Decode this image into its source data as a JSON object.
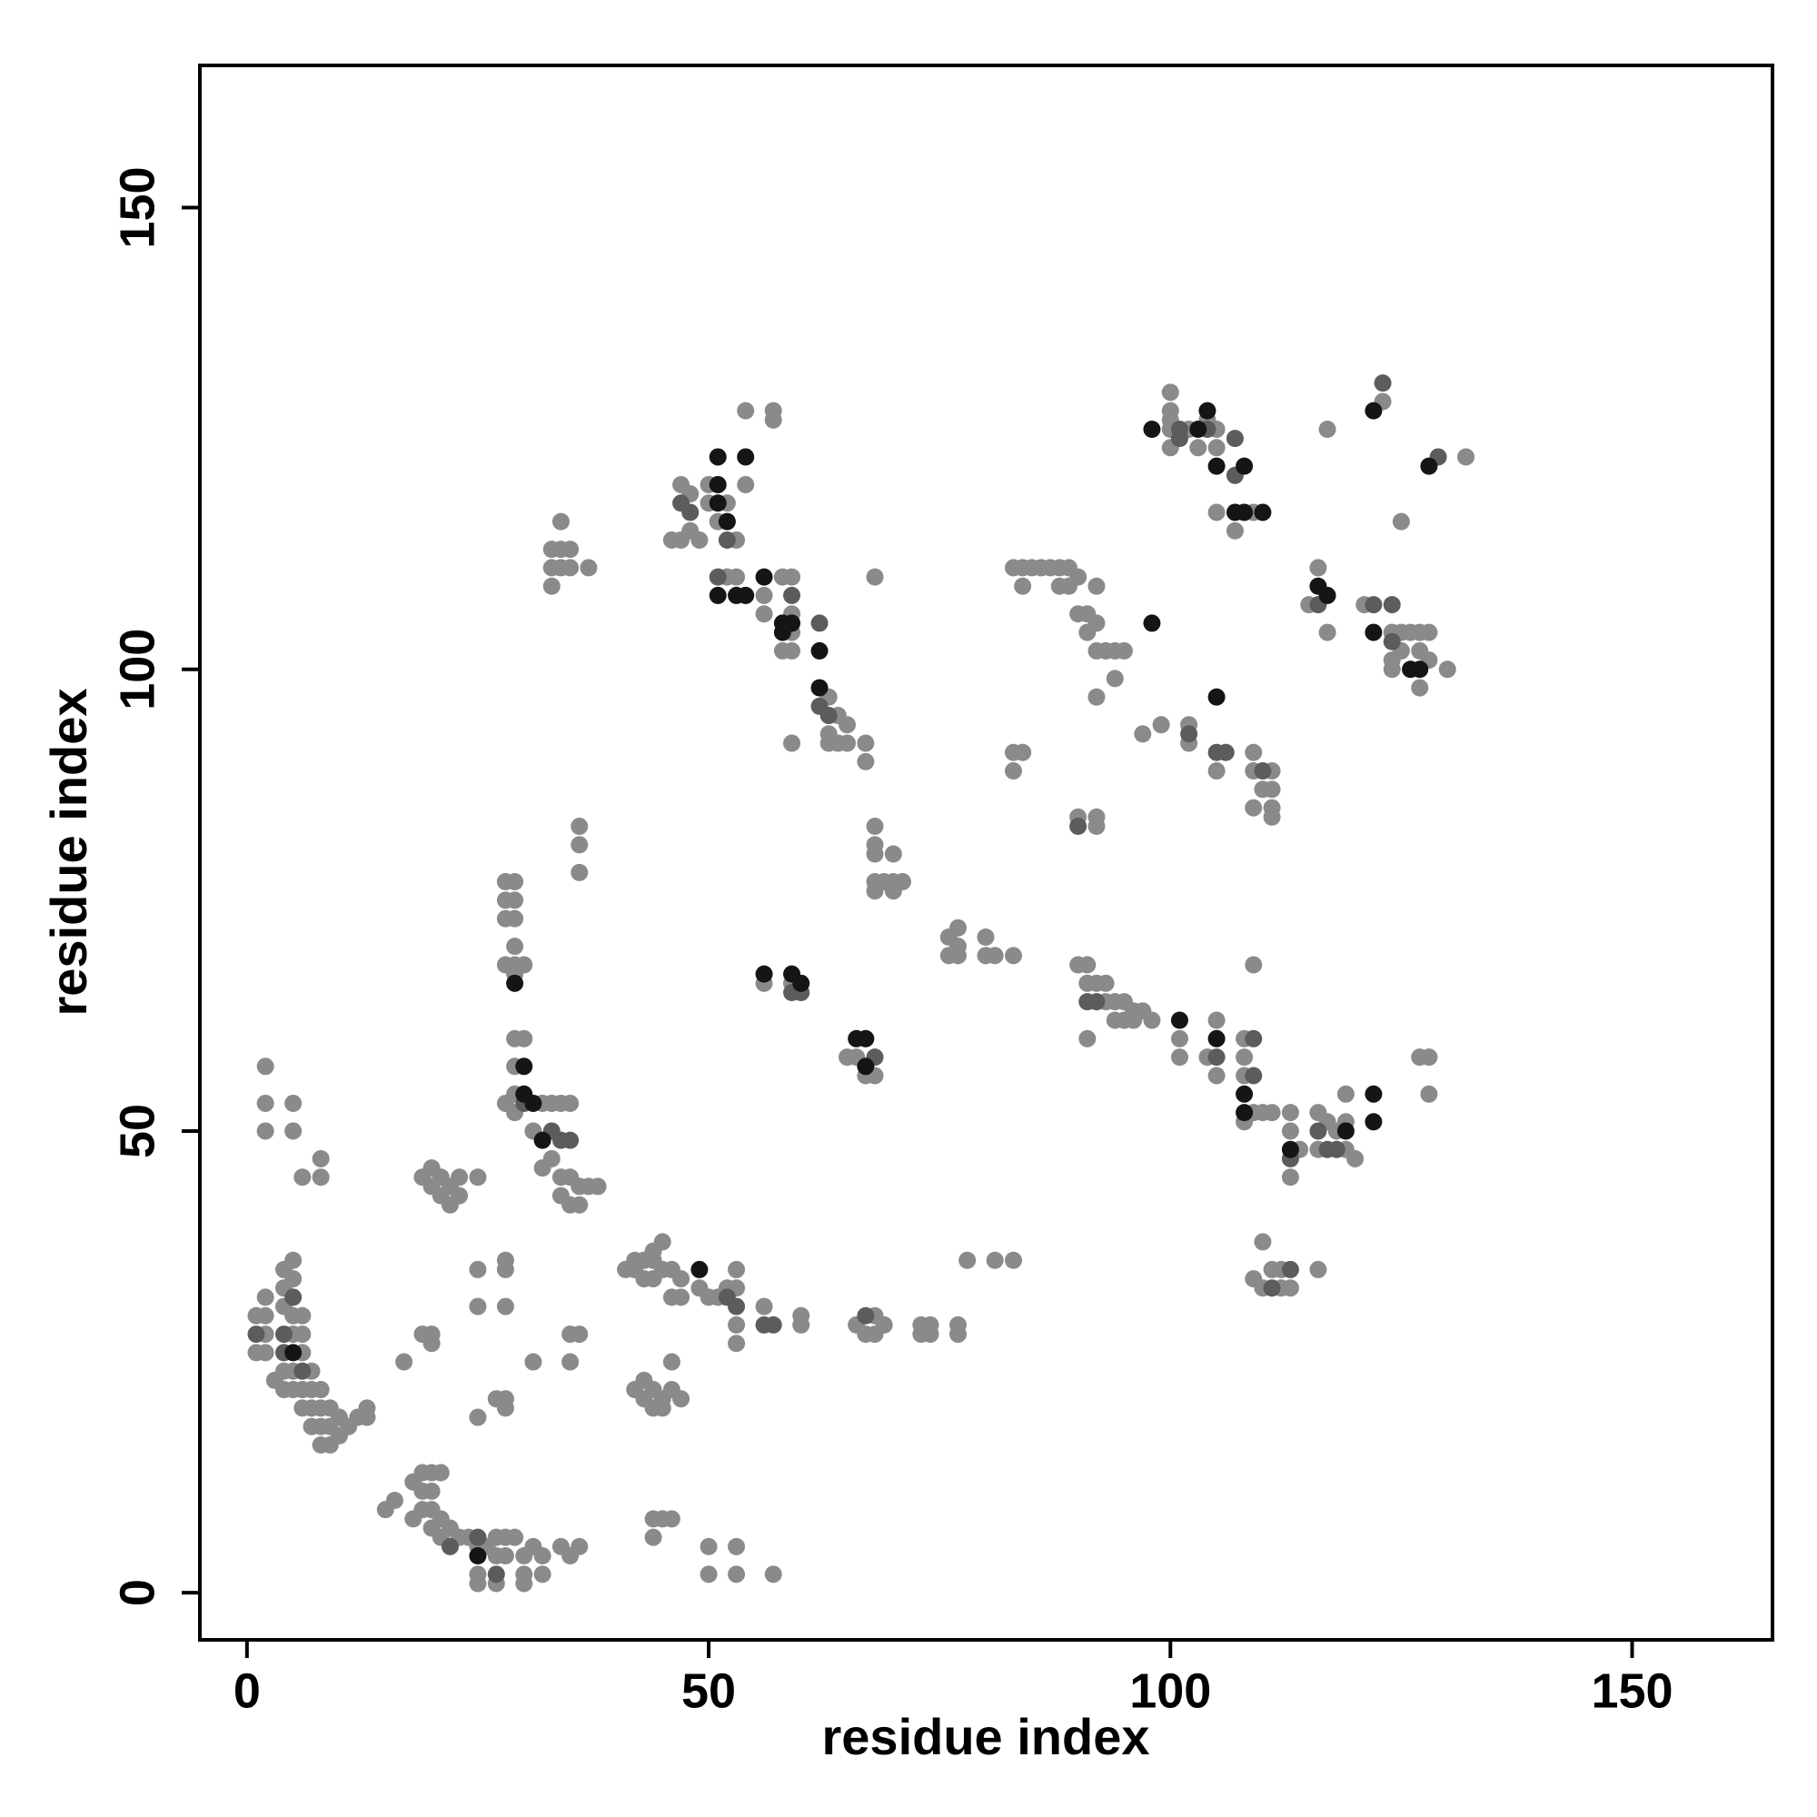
{
  "chart_data": {
    "type": "scatter",
    "xlabel": "residue index",
    "ylabel": "residue index",
    "xlim": [
      -5.1,
      165.2
    ],
    "ylim": [
      -5.1,
      165.4
    ],
    "xticks": [
      0,
      50,
      100,
      150
    ],
    "yticks": [
      0,
      50,
      100,
      150
    ],
    "series": [
      {
        "color": "#8a8a8a",
        "x": [
          1,
          1,
          2,
          2,
          2,
          2,
          3,
          4,
          4,
          4,
          4,
          4,
          5,
          5,
          5,
          5,
          5,
          5,
          6,
          6,
          6,
          6,
          6,
          7,
          7,
          7,
          7,
          8,
          8,
          8,
          8,
          9,
          9,
          9,
          10,
          10,
          11,
          12,
          13,
          13,
          2,
          2,
          2,
          5,
          5,
          6,
          8,
          8,
          19,
          20,
          20,
          21,
          21,
          22,
          22,
          23,
          23,
          25,
          19,
          20,
          17,
          20,
          25,
          25,
          28,
          28,
          28,
          25,
          27,
          28,
          28,
          31,
          35,
          36,
          35,
          15,
          16,
          18,
          18,
          19,
          19,
          19,
          20,
          20,
          20,
          20,
          21,
          21,
          21,
          22,
          23,
          24,
          25,
          25,
          26,
          27,
          27,
          27,
          28,
          28,
          29,
          30,
          30,
          30,
          31,
          32,
          32,
          34,
          35,
          36,
          25,
          44,
          45,
          46,
          44,
          50,
          53,
          50,
          53,
          57,
          28,
          29,
          29,
          29,
          29,
          30,
          31,
          32,
          32,
          33,
          33,
          34,
          34,
          34,
          35,
          35,
          35,
          36,
          36,
          37,
          38,
          28,
          29,
          29,
          29,
          30,
          28,
          29,
          28,
          29,
          28,
          29,
          36,
          36,
          36,
          33,
          33,
          34,
          34,
          35,
          35,
          34,
          33,
          37,
          41,
          42,
          42,
          43,
          43,
          44,
          44,
          44,
          45,
          45,
          46,
          46,
          47,
          47,
          49,
          50,
          51,
          52,
          53,
          53,
          53,
          53,
          56,
          60,
          60,
          42,
          43,
          43,
          44,
          44,
          45,
          45,
          46,
          46,
          47,
          66,
          67,
          68,
          68,
          69,
          73,
          73,
          74,
          74,
          77,
          77,
          78,
          81,
          83,
          66,
          68,
          67,
          65,
          56,
          59,
          68,
          68,
          68,
          70,
          68,
          69,
          68,
          70,
          70,
          71,
          76,
          76,
          77,
          77,
          77,
          80,
          80,
          81,
          83,
          90,
          91,
          91,
          92,
          93,
          93,
          94,
          95,
          96,
          97,
          98,
          96,
          95,
          94,
          91,
          101,
          101,
          104,
          105,
          105,
          108,
          108,
          108,
          109,
          108,
          109,
          110,
          111,
          113,
          113,
          113,
          114,
          116,
          116,
          117,
          118,
          119,
          119,
          119,
          120,
          127,
          128,
          128,
          109,
          110,
          110,
          111,
          112,
          112,
          113,
          116,
          46,
          47,
          47,
          48,
          48,
          49,
          50,
          50,
          51,
          52,
          52,
          53,
          53,
          54,
          54,
          56,
          56,
          57,
          57,
          58,
          59,
          59,
          59,
          58,
          59,
          63,
          63,
          63,
          64,
          64,
          65,
          65,
          67,
          67,
          59,
          68,
          83,
          84,
          85,
          84,
          86,
          87,
          88,
          88,
          89,
          89,
          90,
          90,
          91,
          91,
          92,
          92,
          92,
          93,
          94,
          95,
          94,
          92,
          83,
          84,
          83,
          90,
          92,
          92,
          97,
          99,
          102,
          102,
          105,
          109,
          109,
          111,
          110,
          111,
          111,
          111,
          109,
          100,
          100,
          100,
          100,
          102,
          103,
          104,
          105,
          105,
          105,
          107,
          109,
          116,
          115,
          117,
          117,
          121,
          123,
          124,
          124,
          124,
          125,
          125,
          125,
          126,
          127,
          127,
          127,
          128,
          128,
          130,
          132,
          100
        ],
        "y": [
          30,
          26,
          32,
          30,
          28,
          26,
          23,
          35,
          33,
          31,
          24,
          22,
          36,
          34,
          30,
          28,
          24,
          22,
          30,
          28,
          26,
          22,
          20,
          24,
          22,
          20,
          18,
          22,
          20,
          18,
          16,
          20,
          18,
          16,
          19,
          17,
          18,
          19,
          20,
          19,
          57,
          53,
          50,
          53,
          50,
          45,
          47,
          45,
          45,
          46,
          44,
          45,
          43,
          44,
          42,
          45,
          43,
          45,
          28,
          28,
          25,
          27,
          35,
          31,
          36,
          35,
          31,
          19,
          21,
          21,
          20,
          25,
          28,
          28,
          25,
          9,
          10,
          12,
          8,
          13,
          11,
          9,
          13,
          11,
          9,
          7,
          13,
          8,
          6,
          7,
          6,
          6,
          5,
          2,
          5,
          6,
          4,
          1,
          6,
          4,
          6,
          4,
          2,
          1,
          5,
          4,
          2,
          5,
          4,
          5,
          1,
          8,
          8,
          8,
          6,
          5,
          5,
          2,
          2,
          2,
          53,
          60,
          57,
          54,
          52,
          60,
          50,
          53,
          46,
          53,
          47,
          53,
          45,
          43,
          53,
          45,
          42,
          44,
          42,
          44,
          44,
          68,
          68,
          70,
          67,
          68,
          73,
          73,
          75,
          75,
          77,
          77,
          83,
          81,
          78,
          113,
          111,
          113,
          111,
          113,
          111,
          116,
          109,
          111,
          35,
          35,
          36,
          34,
          36,
          36,
          34,
          37,
          38,
          35,
          35,
          32,
          34,
          32,
          33,
          32,
          32,
          33,
          33,
          35,
          29,
          27,
          31,
          30,
          29,
          22,
          23,
          21,
          22,
          20,
          21,
          20,
          25,
          22,
          21,
          29,
          28,
          30,
          28,
          29,
          29,
          28,
          29,
          28,
          29,
          28,
          36,
          36,
          36,
          58,
          56,
          56,
          58,
          66,
          66,
          83,
          81,
          80,
          80,
          77,
          77,
          76,
          77,
          76,
          77,
          71,
          69,
          72,
          70,
          69,
          71,
          69,
          69,
          69,
          68,
          68,
          66,
          66,
          66,
          64,
          64,
          64,
          63,
          63,
          62,
          62,
          62,
          62,
          60,
          60,
          58,
          58,
          62,
          56,
          58,
          60,
          56,
          68,
          51,
          52,
          52,
          52,
          52,
          50,
          45,
          48,
          52,
          48,
          51,
          50,
          51,
          48,
          54,
          47,
          58,
          58,
          54,
          34,
          33,
          38,
          35,
          35,
          33,
          33,
          35,
          114,
          114,
          120,
          119,
          115,
          114,
          120,
          118,
          116,
          118,
          110,
          114,
          110,
          120,
          128,
          108,
          106,
          128,
          127,
          110,
          110,
          106,
          104,
          102,
          102,
          97,
          93,
          92,
          95,
          92,
          94,
          92,
          92,
          90,
          92,
          110,
          111,
          111,
          111,
          109,
          111,
          111,
          111,
          109,
          111,
          109,
          110,
          106,
          106,
          104,
          109,
          105,
          102,
          102,
          102,
          102,
          99,
          97,
          91,
          91,
          89,
          84,
          84,
          83,
          93,
          94,
          94,
          92,
          89,
          91,
          89,
          89,
          87,
          87,
          85,
          84,
          85,
          128,
          127,
          126,
          124,
          126,
          124,
          127,
          126,
          124,
          117,
          115,
          117,
          111,
          107,
          104,
          126,
          107,
          129,
          104,
          101,
          100,
          116,
          104,
          102,
          104,
          104,
          102,
          98,
          104,
          101,
          100,
          123,
          130
        ]
      },
      {
        "color": "#5c5c5c",
        "x": [
          4,
          4,
          5,
          1,
          6,
          30,
          33,
          34,
          35,
          52,
          53,
          56,
          67,
          57,
          25,
          27,
          22,
          59,
          60,
          68,
          91,
          92,
          105,
          109,
          109,
          113,
          116,
          117,
          118,
          124,
          124,
          122,
          116,
          107,
          104,
          101,
          101,
          107,
          62,
          63,
          62,
          59,
          51,
          52,
          48,
          47,
          123,
          129,
          105,
          106,
          102,
          110,
          90,
          111,
          113
        ],
        "y": [
          28,
          26,
          32,
          28,
          24,
          53,
          50,
          49,
          49,
          32,
          31,
          29,
          30,
          29,
          6,
          2,
          5,
          65,
          65,
          58,
          64,
          64,
          58,
          56,
          60,
          47,
          50,
          48,
          48,
          107,
          103,
          107,
          107,
          125,
          126,
          126,
          125,
          121,
          96,
          95,
          105,
          108,
          110,
          114,
          117,
          118,
          131,
          123,
          91,
          91,
          93,
          89,
          83,
          33,
          35
        ]
      },
      {
        "color": "#151515",
        "x": [
          51,
          54,
          51,
          51,
          52,
          53,
          54,
          51,
          56,
          58,
          58,
          59,
          62,
          62,
          67,
          66,
          67,
          56,
          59,
          60,
          101,
          105,
          108,
          108,
          113,
          119,
          122,
          122,
          107,
          108,
          105,
          103,
          104,
          98,
          116,
          117,
          122,
          122,
          128,
          127,
          126,
          30,
          30,
          31,
          32,
          49,
          25,
          5,
          29,
          98,
          105,
          108,
          110
        ],
        "y": [
          123,
          123,
          120,
          118,
          116,
          108,
          108,
          108,
          110,
          105,
          104,
          105,
          102,
          98,
          60,
          60,
          57,
          67,
          67,
          66,
          62,
          60,
          54,
          52,
          48,
          50,
          54,
          51,
          117,
          117,
          122,
          126,
          128,
          126,
          109,
          108,
          104,
          128,
          122,
          100,
          100,
          57,
          54,
          53,
          49,
          35,
          4,
          26,
          66,
          105,
          97,
          122,
          117
        ]
      }
    ]
  }
}
